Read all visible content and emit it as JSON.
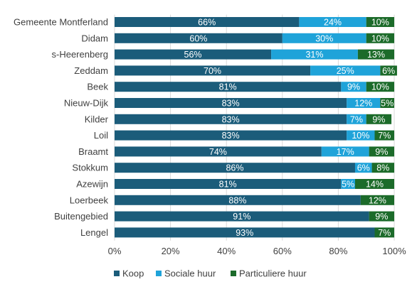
{
  "chart_data": {
    "type": "bar",
    "orientation": "horizontal",
    "stacked": "percent",
    "categories": [
      "Gemeente Montferland",
      "Didam",
      "s-Heerenberg",
      "Zeddam",
      "Beek",
      "Nieuw-Dijk",
      "Kilder",
      "Loil",
      "Braamt",
      "Stokkum",
      "Azewijn",
      "Loerbeek",
      "Buitengebied",
      "Lengel"
    ],
    "series": [
      {
        "name": "Koop",
        "color": "#1b5c7a",
        "values": [
          66,
          60,
          56,
          70,
          81,
          83,
          83,
          83,
          74,
          86,
          81,
          88,
          91,
          93
        ],
        "labels": [
          "66%",
          "60%",
          "56%",
          "70%",
          "81%",
          "83%",
          "83%",
          "83%",
          "74%",
          "86%",
          "81%",
          "88%",
          "91%",
          "93%"
        ]
      },
      {
        "name": "Sociale huur",
        "color": "#1fa3d9",
        "values": [
          24,
          30,
          31,
          25,
          9,
          12,
          7,
          10,
          17,
          6,
          5,
          0,
          0,
          0
        ],
        "labels": [
          "24%",
          "30%",
          "31%",
          "25%",
          "9%",
          "12%",
          "7%",
          "10%",
          "17%",
          "6%",
          "5%",
          "",
          "",
          ""
        ]
      },
      {
        "name": "Particuliere huur",
        "color": "#1c6b2a",
        "values": [
          10,
          10,
          13,
          6,
          10,
          5,
          9,
          7,
          9,
          8,
          14,
          12,
          9,
          7
        ],
        "labels": [
          "10%",
          "10%",
          "13%",
          "6%",
          "10%",
          "5%",
          "9%",
          "7%",
          "9%",
          "8%",
          "14%",
          "12%",
          "9%",
          "7%"
        ]
      }
    ],
    "x_ticks": [
      "0%",
      "20%",
      "40%",
      "60%",
      "80%",
      "100%"
    ],
    "xlim": [
      0,
      100
    ],
    "title": "",
    "xlabel": "",
    "ylabel": "",
    "grid": "vertical",
    "legend_position": "bottom"
  }
}
